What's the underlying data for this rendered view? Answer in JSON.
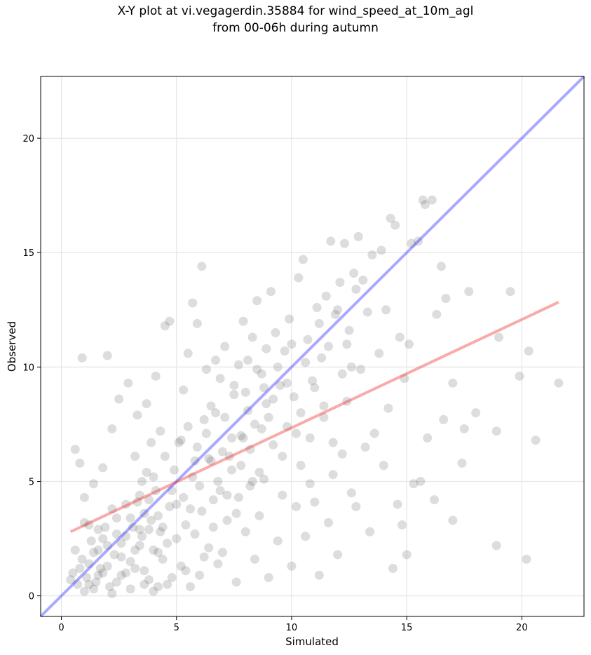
{
  "chart_data": {
    "type": "scatter",
    "title_line1": "X-Y plot at vi.vegagerdin.35884 for wind_speed_at_10m_agl",
    "title_line2": "from 00-06h during autumn",
    "xlabel": "Simulated",
    "ylabel": "Observed",
    "xlim": [
      -0.9,
      22.7
    ],
    "ylim": [
      -0.9,
      22.7
    ],
    "xticks": [
      0,
      5,
      10,
      15,
      20
    ],
    "yticks": [
      0,
      5,
      10,
      15,
      20
    ],
    "grid": true,
    "point_color": "#555555",
    "points": [
      [
        0.5,
        1.0
      ],
      [
        0.7,
        0.5
      ],
      [
        0.9,
        1.6
      ],
      [
        1.1,
        0.8
      ],
      [
        1.3,
        2.4
      ],
      [
        1.5,
        0.6
      ],
      [
        1.7,
        1.2
      ],
      [
        1.9,
        3.0
      ],
      [
        2.1,
        0.4
      ],
      [
        2.3,
        1.8
      ],
      [
        0.6,
        6.4
      ],
      [
        0.8,
        5.8
      ],
      [
        0.9,
        10.4
      ],
      [
        1.0,
        4.3
      ],
      [
        1.2,
        3.1
      ],
      [
        1.4,
        4.9
      ],
      [
        1.6,
        2.0
      ],
      [
        1.8,
        5.6
      ],
      [
        2.0,
        10.5
      ],
      [
        2.2,
        7.3
      ],
      [
        2.4,
        2.7
      ],
      [
        2.6,
        0.9
      ],
      [
        2.8,
        4.0
      ],
      [
        3.0,
        1.5
      ],
      [
        3.2,
        6.1
      ],
      [
        3.4,
        2.2
      ],
      [
        3.6,
        3.6
      ],
      [
        3.8,
        0.7
      ],
      [
        4.0,
        5.2
      ],
      [
        4.2,
        1.9
      ],
      [
        2.5,
        8.6
      ],
      [
        2.9,
        9.3
      ],
      [
        3.3,
        7.9
      ],
      [
        3.7,
        8.4
      ],
      [
        4.1,
        9.6
      ],
      [
        4.5,
        11.8
      ],
      [
        4.7,
        12.0
      ],
      [
        4.3,
        7.2
      ],
      [
        3.9,
        6.7
      ],
      [
        3.5,
        5.0
      ],
      [
        4.4,
        3.0
      ],
      [
        4.6,
        0.5
      ],
      [
        4.8,
        4.6
      ],
      [
        5.0,
        2.5
      ],
      [
        5.2,
        6.8
      ],
      [
        5.4,
        1.1
      ],
      [
        5.6,
        3.8
      ],
      [
        5.8,
        5.9
      ],
      [
        6.0,
        0.9
      ],
      [
        6.2,
        7.7
      ],
      [
        5.3,
        9.0
      ],
      [
        5.5,
        10.6
      ],
      [
        5.7,
        12.8
      ],
      [
        5.9,
        11.9
      ],
      [
        6.1,
        14.4
      ],
      [
        6.3,
        9.9
      ],
      [
        6.5,
        8.3
      ],
      [
        6.7,
        10.3
      ],
      [
        6.9,
        9.5
      ],
      [
        7.1,
        10.9
      ],
      [
        6.4,
        2.1
      ],
      [
        6.6,
        4.2
      ],
      [
        6.8,
        1.4
      ],
      [
        7.0,
        6.3
      ],
      [
        7.2,
        3.3
      ],
      [
        7.4,
        5.5
      ],
      [
        7.6,
        0.6
      ],
      [
        7.8,
        7.0
      ],
      [
        8.0,
        2.8
      ],
      [
        8.2,
        4.8
      ],
      [
        7.5,
        8.8
      ],
      [
        7.7,
        10.1
      ],
      [
        7.9,
        12.0
      ],
      [
        8.1,
        8.1
      ],
      [
        8.3,
        11.3
      ],
      [
        8.5,
        12.9
      ],
      [
        8.7,
        9.7
      ],
      [
        8.9,
        10.8
      ],
      [
        9.1,
        13.3
      ],
      [
        9.3,
        11.5
      ],
      [
        8.4,
        1.6
      ],
      [
        8.6,
        3.5
      ],
      [
        8.8,
        5.1
      ],
      [
        9.0,
        0.8
      ],
      [
        9.2,
        6.6
      ],
      [
        9.4,
        2.4
      ],
      [
        9.6,
        4.4
      ],
      [
        9.8,
        7.4
      ],
      [
        10.0,
        1.3
      ],
      [
        10.2,
        3.9
      ],
      [
        9.5,
        9.2
      ],
      [
        9.7,
        10.7
      ],
      [
        9.9,
        12.1
      ],
      [
        10.1,
        8.7
      ],
      [
        10.3,
        13.9
      ],
      [
        10.5,
        14.7
      ],
      [
        10.7,
        11.2
      ],
      [
        10.9,
        9.4
      ],
      [
        11.1,
        12.6
      ],
      [
        11.3,
        10.4
      ],
      [
        10.4,
        5.7
      ],
      [
        10.6,
        2.6
      ],
      [
        10.8,
        6.9
      ],
      [
        11.0,
        4.1
      ],
      [
        11.2,
        0.9
      ],
      [
        11.4,
        7.8
      ],
      [
        11.6,
        3.2
      ],
      [
        11.8,
        5.3
      ],
      [
        12.0,
        1.8
      ],
      [
        12.2,
        6.2
      ],
      [
        11.5,
        13.1
      ],
      [
        11.7,
        15.5
      ],
      [
        11.9,
        12.3
      ],
      [
        12.1,
        13.7
      ],
      [
        12.3,
        15.4
      ],
      [
        12.5,
        11.6
      ],
      [
        12.7,
        14.1
      ],
      [
        12.9,
        15.7
      ],
      [
        13.1,
        13.8
      ],
      [
        13.3,
        12.4
      ],
      [
        12.4,
        8.5
      ],
      [
        12.6,
        4.5
      ],
      [
        12.8,
        3.9
      ],
      [
        13.0,
        9.9
      ],
      [
        13.2,
        6.5
      ],
      [
        13.4,
        2.8
      ],
      [
        13.6,
        7.1
      ],
      [
        13.8,
        10.6
      ],
      [
        14.0,
        5.7
      ],
      [
        14.2,
        8.2
      ],
      [
        13.5,
        14.9
      ],
      [
        13.9,
        15.1
      ],
      [
        14.3,
        16.5
      ],
      [
        14.5,
        16.2
      ],
      [
        14.1,
        12.5
      ],
      [
        14.7,
        11.3
      ],
      [
        14.9,
        9.5
      ],
      [
        15.2,
        15.4
      ],
      [
        15.5,
        15.5
      ],
      [
        15.8,
        17.1
      ],
      [
        14.4,
        1.2
      ],
      [
        14.6,
        4.0
      ],
      [
        14.8,
        3.1
      ],
      [
        15.0,
        1.8
      ],
      [
        15.3,
        4.9
      ],
      [
        15.6,
        5.0
      ],
      [
        15.9,
        6.9
      ],
      [
        16.2,
        4.2
      ],
      [
        16.6,
        7.7
      ],
      [
        17.0,
        3.3
      ],
      [
        15.7,
        17.3
      ],
      [
        16.1,
        17.3
      ],
      [
        16.5,
        14.4
      ],
      [
        17.0,
        9.3
      ],
      [
        16.7,
        13.0
      ],
      [
        17.7,
        13.3
      ],
      [
        17.5,
        7.3
      ],
      [
        18.9,
        2.2
      ],
      [
        18.9,
        7.2
      ],
      [
        19.0,
        11.3
      ],
      [
        19.5,
        13.3
      ],
      [
        19.9,
        9.6
      ],
      [
        20.2,
        1.6
      ],
      [
        20.3,
        10.7
      ],
      [
        20.6,
        6.8
      ],
      [
        21.6,
        9.3
      ],
      [
        17.4,
        5.8
      ],
      [
        16.3,
        12.3
      ],
      [
        15.1,
        11.0
      ],
      [
        18.0,
        8.0
      ],
      [
        1.0,
        0.2
      ],
      [
        1.2,
        1.4
      ],
      [
        1.4,
        0.3
      ],
      [
        1.6,
        2.9
      ],
      [
        1.8,
        1.0
      ],
      [
        2.0,
        2.2
      ],
      [
        2.2,
        0.1
      ],
      [
        2.4,
        3.4
      ],
      [
        2.6,
        1.7
      ],
      [
        2.8,
        2.6
      ],
      [
        3.0,
        0.3
      ],
      [
        3.2,
        2.0
      ],
      [
        3.4,
        4.4
      ],
      [
        3.6,
        1.1
      ],
      [
        3.8,
        2.9
      ],
      [
        4.0,
        0.2
      ],
      [
        4.2,
        3.5
      ],
      [
        4.4,
        1.6
      ],
      [
        4.6,
        2.3
      ],
      [
        4.8,
        0.8
      ],
      [
        5.0,
        4.0
      ],
      [
        5.2,
        1.3
      ],
      [
        5.4,
        3.1
      ],
      [
        5.6,
        0.4
      ],
      [
        5.8,
        2.7
      ],
      [
        6.0,
        4.8
      ],
      [
        6.2,
        1.7
      ],
      [
        6.4,
        6.0
      ],
      [
        6.6,
        3.0
      ],
      [
        6.8,
        5.0
      ],
      [
        7.0,
        1.9
      ],
      [
        7.2,
        4.4
      ],
      [
        7.4,
        6.9
      ],
      [
        7.6,
        3.6
      ],
      [
        7.8,
        5.7
      ],
      [
        8.0,
        8.9
      ],
      [
        8.2,
        6.4
      ],
      [
        8.4,
        7.5
      ],
      [
        8.6,
        5.4
      ],
      [
        8.8,
        9.1
      ],
      [
        9.0,
        7.8
      ],
      [
        9.2,
        8.6
      ],
      [
        9.4,
        10.0
      ],
      [
        9.6,
        6.1
      ],
      [
        9.8,
        9.3
      ],
      [
        10.0,
        11.0
      ],
      [
        10.2,
        7.1
      ],
      [
        10.4,
        8.0
      ],
      [
        10.6,
        10.2
      ],
      [
        10.8,
        4.9
      ],
      [
        11.0,
        9.1
      ],
      [
        11.2,
        11.9
      ],
      [
        11.4,
        8.3
      ],
      [
        11.6,
        10.9
      ],
      [
        11.8,
        6.7
      ],
      [
        12.0,
        12.5
      ],
      [
        12.2,
        9.7
      ],
      [
        12.4,
        11.0
      ],
      [
        12.6,
        10.0
      ],
      [
        12.8,
        13.4
      ],
      [
        3.1,
        3.0
      ],
      [
        3.3,
        4.1
      ],
      [
        3.5,
        2.6
      ],
      [
        3.7,
        5.4
      ],
      [
        3.9,
        3.3
      ],
      [
        4.1,
        4.6
      ],
      [
        4.3,
        2.8
      ],
      [
        4.5,
        6.1
      ],
      [
        4.7,
        3.9
      ],
      [
        4.9,
        5.5
      ],
      [
        5.1,
        6.7
      ],
      [
        5.3,
        4.3
      ],
      [
        5.5,
        7.4
      ],
      [
        5.7,
        5.2
      ],
      [
        5.9,
        6.5
      ],
      [
        6.1,
        3.7
      ],
      [
        6.3,
        7.1
      ],
      [
        6.5,
        5.9
      ],
      [
        6.7,
        8.0
      ],
      [
        6.9,
        4.6
      ],
      [
        7.1,
        7.8
      ],
      [
        7.3,
        6.1
      ],
      [
        7.5,
        9.2
      ],
      [
        7.7,
        4.3
      ],
      [
        7.9,
        6.9
      ],
      [
        8.1,
        10.3
      ],
      [
        8.3,
        5.0
      ],
      [
        8.5,
        9.9
      ],
      [
        8.7,
        7.3
      ],
      [
        8.9,
        8.4
      ],
      [
        0.4,
        0.7
      ],
      [
        0.6,
        2.0
      ],
      [
        0.8,
        1.2
      ],
      [
        1.0,
        3.2
      ],
      [
        1.2,
        0.5
      ],
      [
        1.4,
        1.9
      ],
      [
        1.6,
        0.9
      ],
      [
        1.8,
        2.5
      ],
      [
        2.0,
        1.3
      ],
      [
        2.2,
        3.8
      ],
      [
        2.4,
        0.6
      ],
      [
        2.6,
        2.3
      ],
      [
        2.8,
        1.0
      ],
      [
        3.0,
        3.4
      ],
      [
        3.2,
        1.2
      ],
      [
        3.4,
        2.9
      ],
      [
        3.6,
        0.5
      ],
      [
        3.8,
        4.2
      ],
      [
        4.0,
        2.0
      ],
      [
        4.2,
        0.4
      ]
    ]
  }
}
